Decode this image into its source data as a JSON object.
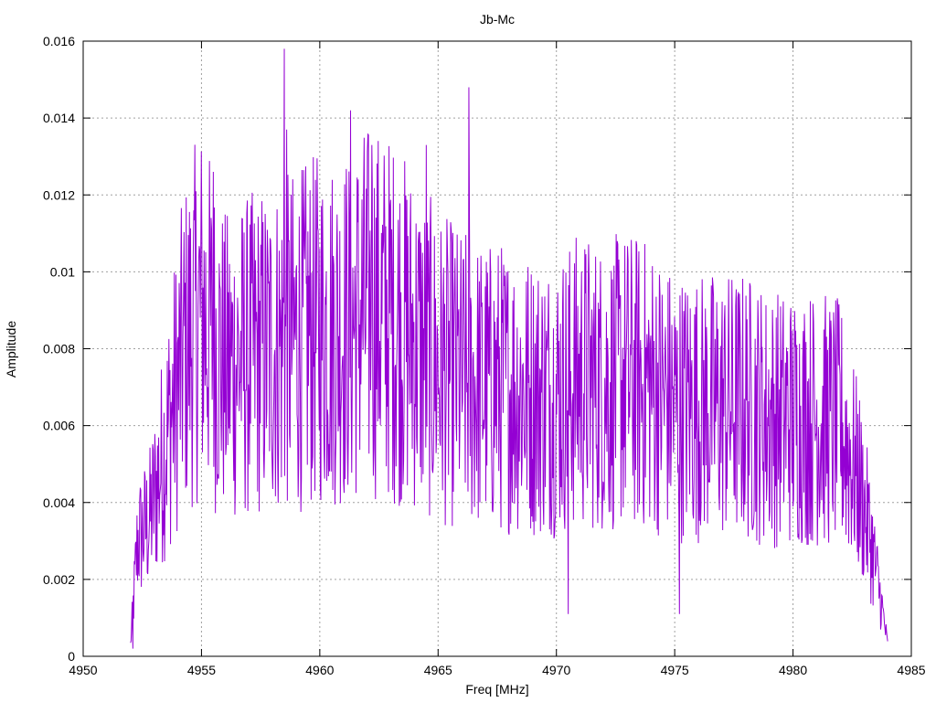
{
  "chart_data": {
    "type": "line",
    "title": "Jb-Mc",
    "xlabel": "Freq [MHz]",
    "ylabel": "Amplitude",
    "xlim": [
      4950,
      4985
    ],
    "ylim": [
      0,
      0.016
    ],
    "x_ticks": [
      "4950",
      "4955",
      "4960",
      "4965",
      "4970",
      "4975",
      "4980",
      "4985"
    ],
    "y_ticks": [
      "0",
      "0.002",
      "0.004",
      "0.006",
      "0.008",
      "0.01",
      "0.012",
      "0.014",
      "0.016"
    ],
    "grid": true,
    "series_color": "#9400d3",
    "series": [
      {
        "x_start": 4952.0,
        "x_end": 4984.0,
        "note": "Dense noisy spectrum; envelope with notable peaks",
        "envelope": [
          {
            "x": 4952.0,
            "y": 0.0003
          },
          {
            "x": 4952.3,
            "y": 0.003
          },
          {
            "x": 4952.8,
            "y": 0.0035
          },
          {
            "x": 4953.3,
            "y": 0.005
          },
          {
            "x": 4953.8,
            "y": 0.0065
          },
          {
            "x": 4954.3,
            "y": 0.008
          },
          {
            "x": 4955.0,
            "y": 0.009
          },
          {
            "x": 4956.0,
            "y": 0.0075
          },
          {
            "x": 4957.0,
            "y": 0.0078
          },
          {
            "x": 4958.0,
            "y": 0.008
          },
          {
            "x": 4959.0,
            "y": 0.0082
          },
          {
            "x": 4960.0,
            "y": 0.0085
          },
          {
            "x": 4961.0,
            "y": 0.0085
          },
          {
            "x": 4962.0,
            "y": 0.009
          },
          {
            "x": 4963.0,
            "y": 0.0088
          },
          {
            "x": 4964.0,
            "y": 0.0082
          },
          {
            "x": 4965.0,
            "y": 0.0075
          },
          {
            "x": 4966.0,
            "y": 0.0072
          },
          {
            "x": 4967.0,
            "y": 0.007
          },
          {
            "x": 4968.0,
            "y": 0.007
          },
          {
            "x": 4969.0,
            "y": 0.0068
          },
          {
            "x": 4970.0,
            "y": 0.0068
          },
          {
            "x": 4971.0,
            "y": 0.0072
          },
          {
            "x": 4972.0,
            "y": 0.007
          },
          {
            "x": 4973.0,
            "y": 0.0072
          },
          {
            "x": 4974.0,
            "y": 0.007
          },
          {
            "x": 4975.0,
            "y": 0.0065
          },
          {
            "x": 4976.0,
            "y": 0.0065
          },
          {
            "x": 4977.0,
            "y": 0.0065
          },
          {
            "x": 4978.0,
            "y": 0.0065
          },
          {
            "x": 4979.0,
            "y": 0.0062
          },
          {
            "x": 4980.0,
            "y": 0.0062
          },
          {
            "x": 4981.0,
            "y": 0.0062
          },
          {
            "x": 4982.0,
            "y": 0.006
          },
          {
            "x": 4982.8,
            "y": 0.0045
          },
          {
            "x": 4983.3,
            "y": 0.003
          },
          {
            "x": 4983.7,
            "y": 0.0015
          },
          {
            "x": 4984.0,
            "y": 0.0003
          }
        ],
        "peaks": [
          {
            "x": 4958.5,
            "y": 0.0158
          },
          {
            "x": 4958.6,
            "y": 0.0137
          },
          {
            "x": 4961.3,
            "y": 0.0142
          },
          {
            "x": 4966.3,
            "y": 0.0148
          },
          {
            "x": 4955.5,
            "y": 0.0126
          },
          {
            "x": 4962.2,
            "y": 0.0133
          },
          {
            "x": 4964.5,
            "y": 0.0133
          },
          {
            "x": 4970.5,
            "y": 0.0011
          },
          {
            "x": 4975.2,
            "y": 0.0011
          },
          {
            "x": 4952.1,
            "y": 0.0002
          }
        ]
      }
    ]
  }
}
